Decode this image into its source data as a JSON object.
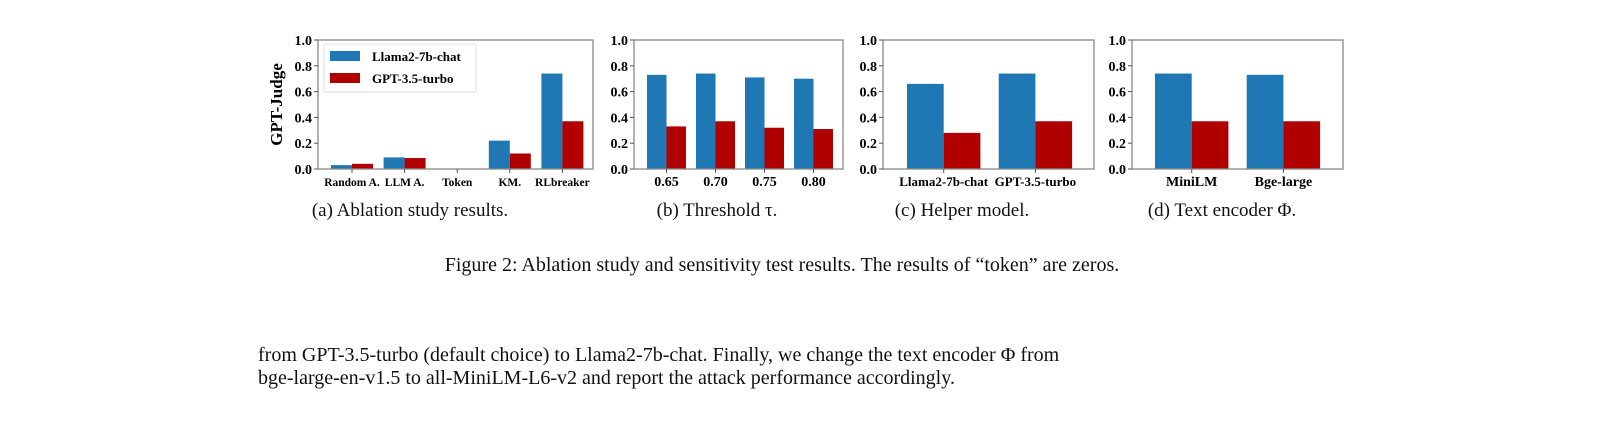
{
  "colors": {
    "series_1": "#1f77b4",
    "series_2": "#b00000"
  },
  "legend": [
    "Llama2-7b-chat",
    "GPT-3.5-turbo"
  ],
  "chart_data": [
    {
      "type": "bar",
      "ylabel": "GPT-Judge",
      "ylim": [
        0,
        1.0
      ],
      "yticks": [
        "0.0",
        "0.2",
        "0.4",
        "0.6",
        "0.8",
        "1.0"
      ],
      "legend_position": "top-left",
      "categories": [
        "Random A.",
        "LLM A.",
        "Token",
        "KM.",
        "RLbreaker"
      ],
      "series": [
        {
          "name": "Llama2-7b-chat",
          "values": [
            0.03,
            0.09,
            0.0,
            0.22,
            0.74
          ]
        },
        {
          "name": "GPT-3.5-turbo",
          "values": [
            0.04,
            0.085,
            0.0,
            0.12,
            0.37
          ]
        }
      ]
    },
    {
      "type": "bar",
      "ylim": [
        0,
        1.0
      ],
      "yticks": [
        "0.0",
        "0.2",
        "0.4",
        "0.6",
        "0.8",
        "1.0"
      ],
      "categories": [
        "0.65",
        "0.70",
        "0.75",
        "0.80"
      ],
      "series": [
        {
          "name": "Llama2-7b-chat",
          "values": [
            0.73,
            0.74,
            0.71,
            0.7
          ]
        },
        {
          "name": "GPT-3.5-turbo",
          "values": [
            0.33,
            0.37,
            0.32,
            0.31
          ]
        }
      ]
    },
    {
      "type": "bar",
      "ylim": [
        0,
        1.0
      ],
      "yticks": [
        "0.0",
        "0.2",
        "0.4",
        "0.6",
        "0.8",
        "1.0"
      ],
      "categories": [
        "Llama2-7b-chat",
        "GPT-3.5-turbo"
      ],
      "series": [
        {
          "name": "Llama2-7b-chat",
          "values": [
            0.66,
            0.74
          ]
        },
        {
          "name": "GPT-3.5-turbo",
          "values": [
            0.28,
            0.37
          ]
        }
      ]
    },
    {
      "type": "bar",
      "ylim": [
        0,
        1.0
      ],
      "yticks": [
        "0.0",
        "0.2",
        "0.4",
        "0.6",
        "0.8",
        "1.0"
      ],
      "categories": [
        "MiniLM",
        "Bge-large"
      ],
      "series": [
        {
          "name": "Llama2-7b-chat",
          "values": [
            0.74,
            0.73
          ]
        },
        {
          "name": "GPT-3.5-turbo",
          "values": [
            0.37,
            0.37
          ]
        }
      ]
    }
  ],
  "subcaptions": [
    "(a)  Ablation study results.",
    "(b)  Threshold τ.",
    "(c)  Helper model.",
    "(d)  Text encoder Φ."
  ],
  "figure_caption": "Figure 2: Ablation study and sensitivity test results. The results of “token” are zeros.",
  "body_text": [
    "from GPT-3.5-turbo (default choice) to Llama2-7b-chat. Finally, we change the text encoder Φ from",
    "bge-large-en-v1.5 to all-MiniLM-L6-v2 and report the attack performance accordingly."
  ]
}
